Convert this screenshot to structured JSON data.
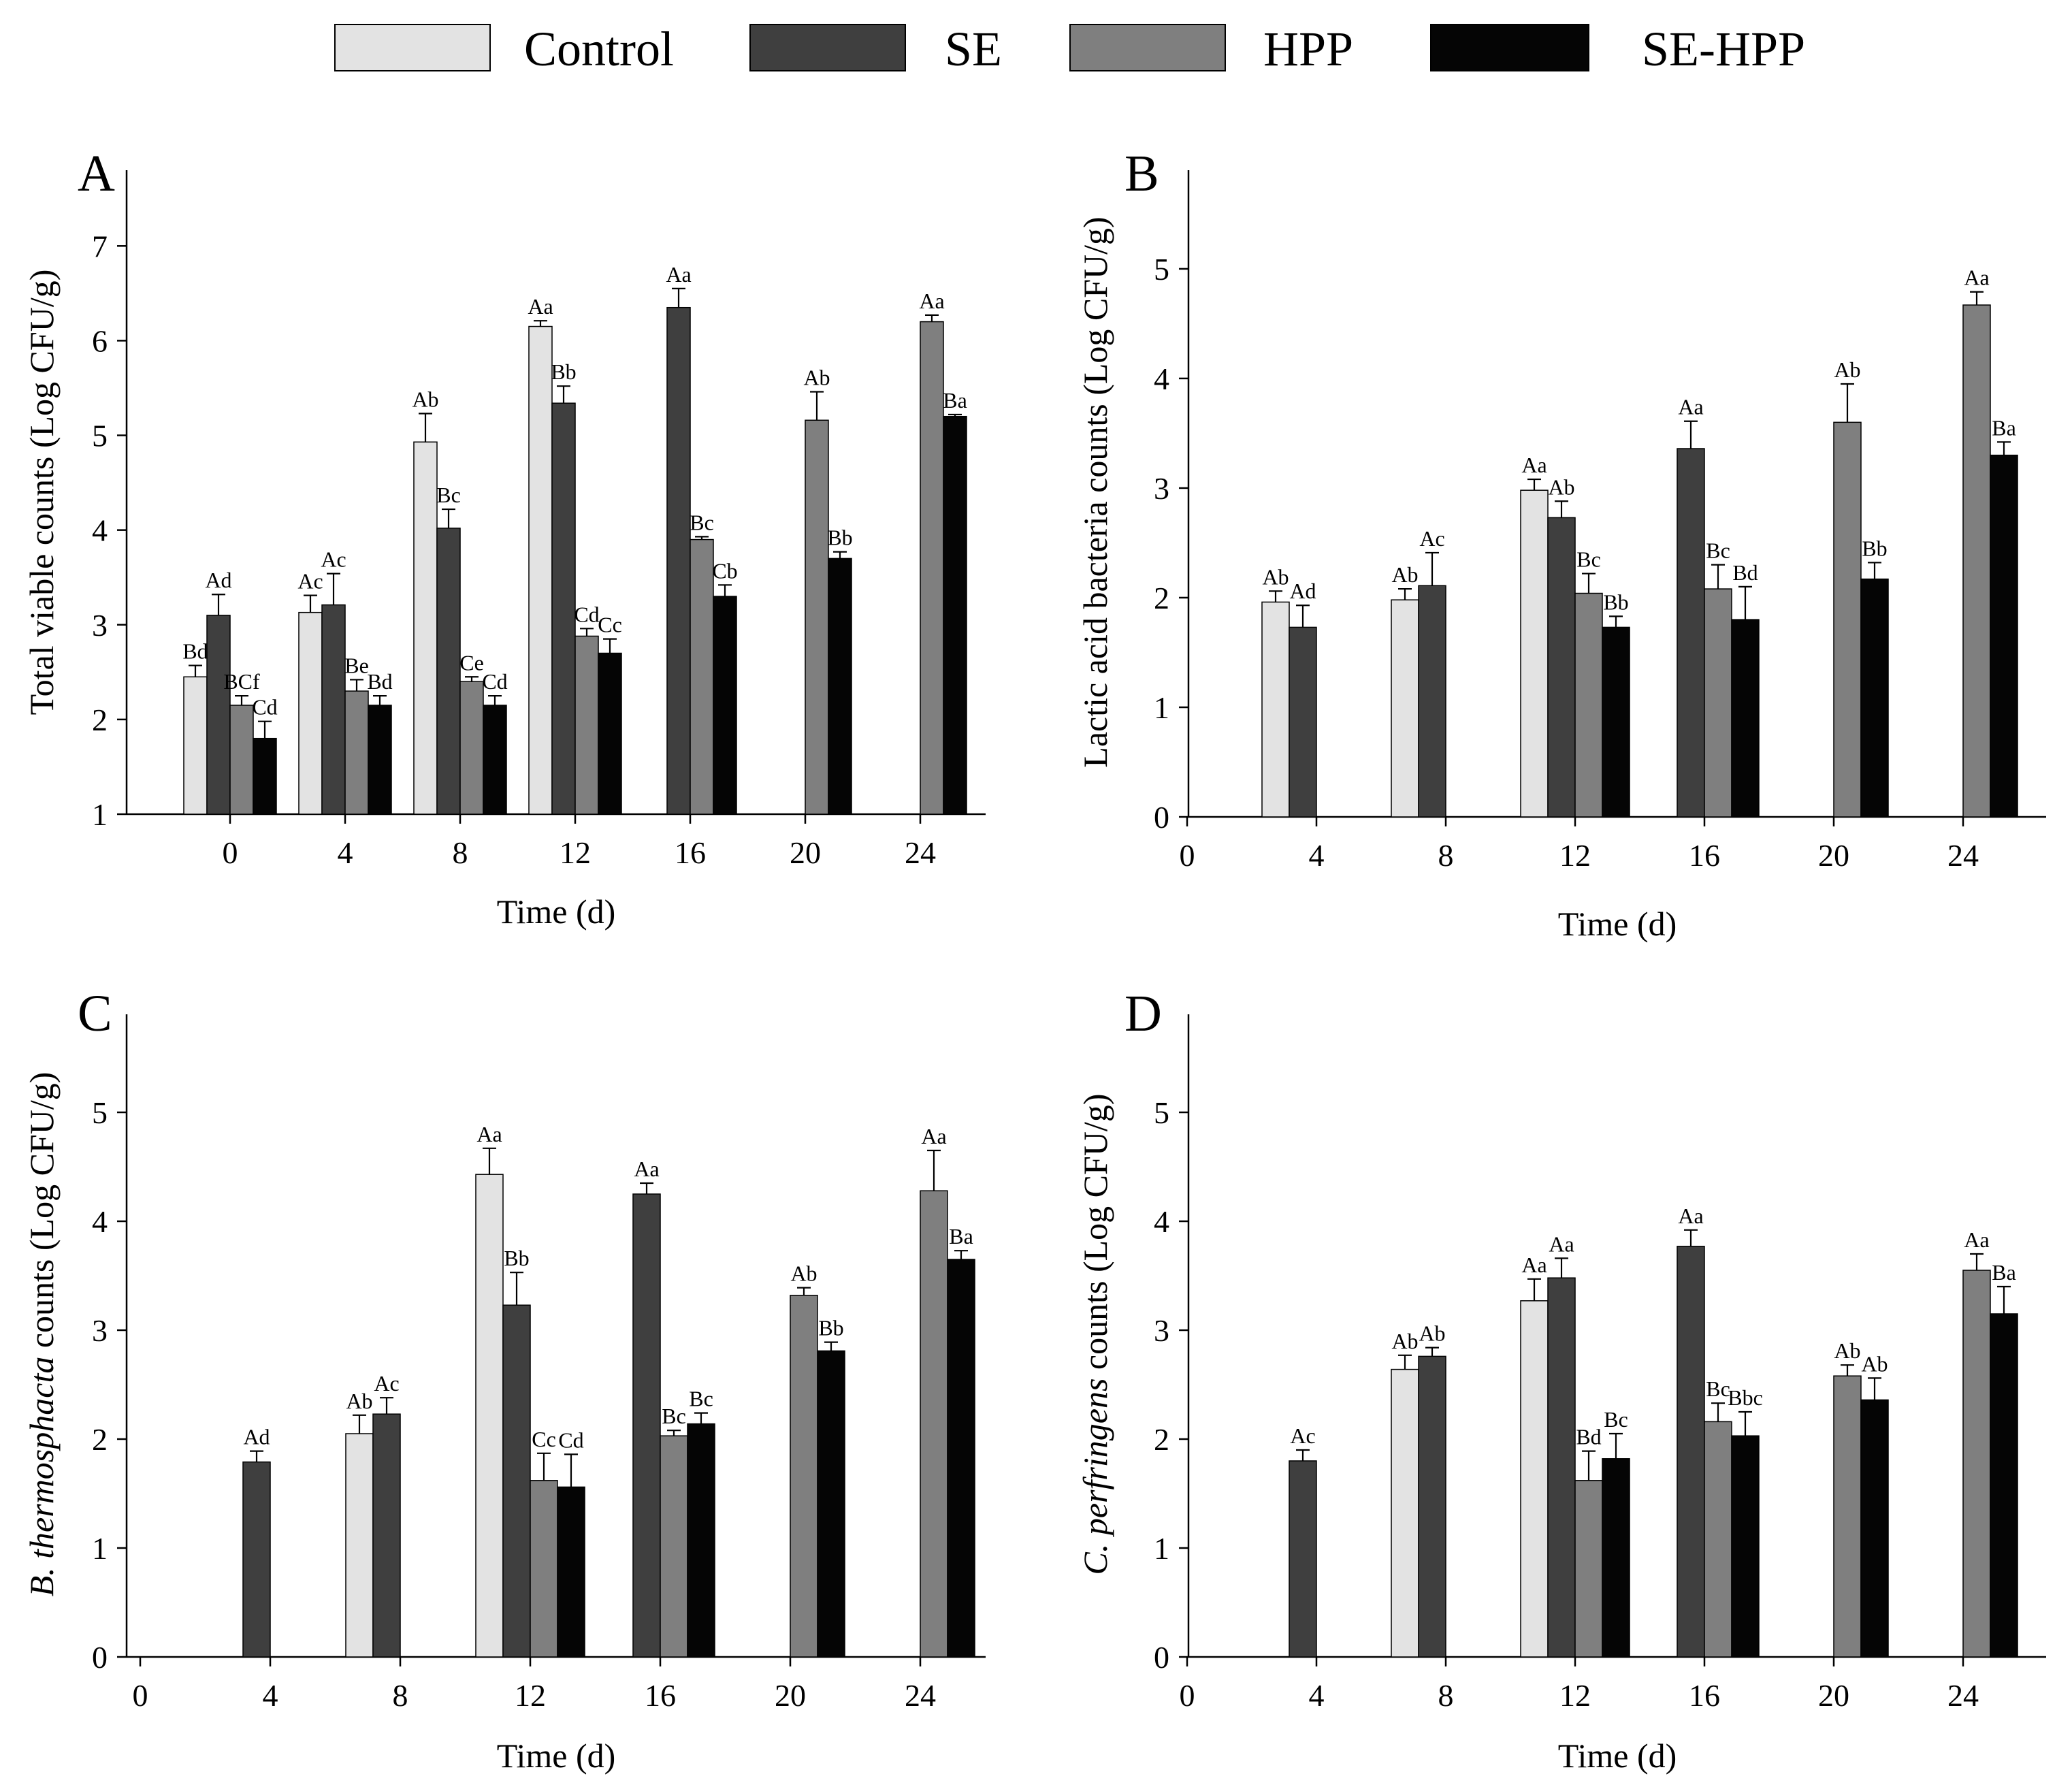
{
  "legend": [
    {
      "name": "Control",
      "color": "#e3e3e3"
    },
    {
      "name": "SE",
      "color": "#3f3f3f"
    },
    {
      "name": "HPP",
      "color": "#7f7f7f"
    },
    {
      "name": "SE-HPP",
      "color": "#050505"
    }
  ],
  "chart_data": [
    {
      "panel": "A",
      "type": "bar",
      "categories": [
        "0",
        "4",
        "8",
        "12",
        "16",
        "20",
        "24"
      ],
      "xlabel": "Time (d)",
      "ylabel": "Total viable counts (Log CFU/g)",
      "ylim": [
        1,
        7.8
      ],
      "yticks": [
        1,
        2,
        3,
        4,
        5,
        6,
        7
      ],
      "grid": false,
      "series": [
        {
          "name": "Control",
          "values": [
            2.45,
            3.13,
            4.93,
            6.15,
            null,
            null,
            null
          ],
          "errors": [
            0.12,
            0.18,
            0.3,
            0.06,
            null,
            null,
            null
          ],
          "labels": [
            "Bd",
            "Ac",
            "Ab",
            "Aa",
            "",
            "",
            ""
          ]
        },
        {
          "name": "SE",
          "values": [
            3.1,
            3.21,
            4.02,
            5.34,
            6.35,
            null,
            null
          ],
          "errors": [
            0.22,
            0.33,
            0.2,
            0.18,
            0.2,
            null,
            null
          ],
          "labels": [
            "Ad",
            "Ac",
            "Bc",
            "Bb",
            "Aa",
            "",
            ""
          ]
        },
        {
          "name": "HPP",
          "values": [
            2.15,
            2.3,
            2.4,
            2.88,
            3.9,
            5.16,
            6.2
          ],
          "errors": [
            0.1,
            0.12,
            0.05,
            0.08,
            0.03,
            0.3,
            0.07
          ],
          "labels": [
            "BCf",
            "Be",
            "Ce",
            "Cd",
            "Bc",
            "Ab",
            "Aa"
          ]
        },
        {
          "name": "SE-HPP",
          "values": [
            1.8,
            2.15,
            2.15,
            2.7,
            3.3,
            3.7,
            5.2
          ],
          "errors": [
            0.18,
            0.1,
            0.1,
            0.15,
            0.12,
            0.07,
            0.02
          ],
          "labels": [
            "Cd",
            "Bd",
            "Cd",
            "Cc",
            "Cb",
            "Bb",
            "Ba"
          ]
        }
      ]
    },
    {
      "panel": "B",
      "type": "bar",
      "categories": [
        "0",
        "4",
        "8",
        "12",
        "16",
        "20",
        "24"
      ],
      "xlabel": "Time (d)",
      "ylabel": "Lactic acid bacteria counts (Log CFU/g)",
      "ylim": [
        0,
        5.9
      ],
      "yticks": [
        0,
        1,
        2,
        3,
        4,
        5
      ],
      "grid": false,
      "series": [
        {
          "name": "Control",
          "values": [
            null,
            1.96,
            1.98,
            2.98,
            null,
            null,
            null
          ],
          "errors": [
            null,
            0.1,
            0.1,
            0.1,
            null,
            null,
            null
          ],
          "labels": [
            "",
            "Ab",
            "Ab",
            "Aa",
            "",
            "",
            ""
          ]
        },
        {
          "name": "SE",
          "values": [
            null,
            1.73,
            2.11,
            2.73,
            3.36,
            null,
            null
          ],
          "errors": [
            null,
            0.2,
            0.3,
            0.15,
            0.25,
            null,
            null
          ],
          "labels": [
            "",
            "Ad",
            "Ac",
            "Ab",
            "Aa",
            "",
            ""
          ]
        },
        {
          "name": "HPP",
          "values": [
            null,
            null,
            null,
            2.04,
            2.08,
            3.6,
            4.67
          ],
          "errors": [
            null,
            null,
            null,
            0.18,
            0.22,
            0.35,
            0.12
          ],
          "labels": [
            "",
            "",
            "",
            "Bc",
            "Bc",
            "Ab",
            "Aa"
          ]
        },
        {
          "name": "SE-HPP",
          "values": [
            null,
            null,
            null,
            1.73,
            1.8,
            2.17,
            3.3
          ],
          "errors": [
            null,
            null,
            null,
            0.1,
            0.3,
            0.15,
            0.12
          ],
          "labels": [
            "",
            "",
            "",
            "Bb",
            "Bd",
            "Bb",
            "Ba"
          ]
        }
      ]
    },
    {
      "panel": "C",
      "type": "bar",
      "categories": [
        "0",
        "4",
        "8",
        "12",
        "16",
        "20",
        "24"
      ],
      "xlabel": "Time (d)",
      "ylabel_italic": "B. thermosphacta",
      "ylabel": " counts (Log CFU/g)",
      "ylim": [
        0,
        5.9
      ],
      "yticks": [
        0,
        1,
        2,
        3,
        4,
        5
      ],
      "grid": false,
      "series": [
        {
          "name": "Control",
          "values": [
            null,
            null,
            2.05,
            4.43,
            null,
            null,
            null
          ],
          "errors": [
            null,
            null,
            0.17,
            0.24,
            null,
            null,
            null
          ],
          "labels": [
            "",
            "",
            "Ab",
            "Aa",
            "",
            "",
            ""
          ]
        },
        {
          "name": "SE",
          "values": [
            null,
            1.79,
            2.23,
            3.23,
            4.25,
            null,
            null
          ],
          "errors": [
            null,
            0.1,
            0.15,
            0.3,
            0.1,
            null,
            null
          ],
          "labels": [
            "",
            "Ad",
            "Ac",
            "Bb",
            "Aa",
            "",
            ""
          ]
        },
        {
          "name": "HPP",
          "values": [
            null,
            null,
            null,
            1.62,
            2.03,
            3.32,
            4.28
          ],
          "errors": [
            null,
            null,
            null,
            0.25,
            0.05,
            0.07,
            0.37
          ],
          "labels": [
            "",
            "",
            "",
            "Cc",
            "Bc",
            "Ab",
            "Aa"
          ]
        },
        {
          "name": "SE-HPP",
          "values": [
            null,
            null,
            null,
            1.56,
            2.14,
            2.81,
            3.65
          ],
          "errors": [
            null,
            null,
            null,
            0.3,
            0.1,
            0.08,
            0.08
          ],
          "labels": [
            "",
            "",
            "",
            "Cd",
            "Bc",
            "Bb",
            "Ba"
          ]
        }
      ]
    },
    {
      "panel": "D",
      "type": "bar",
      "categories": [
        "0",
        "4",
        "8",
        "12",
        "16",
        "20",
        "24"
      ],
      "xlabel": "Time (d)",
      "ylabel_italic": "C. perfringens",
      "ylabel": " counts (Log CFU/g)",
      "ylim": [
        0,
        5.9
      ],
      "yticks": [
        0,
        1,
        2,
        3,
        4,
        5
      ],
      "grid": false,
      "series": [
        {
          "name": "Control",
          "values": [
            null,
            null,
            2.64,
            3.27,
            null,
            null,
            null
          ],
          "errors": [
            null,
            null,
            0.13,
            0.2,
            null,
            null,
            null
          ],
          "labels": [
            "",
            "",
            "Ab",
            "Aa",
            "",
            "",
            ""
          ]
        },
        {
          "name": "SE",
          "values": [
            null,
            1.8,
            2.76,
            3.48,
            3.77,
            null,
            null
          ],
          "errors": [
            null,
            0.1,
            0.08,
            0.18,
            0.15,
            null,
            null
          ],
          "labels": [
            "",
            "Ac",
            "Ab",
            "Aa",
            "Aa",
            "",
            ""
          ]
        },
        {
          "name": "HPP",
          "values": [
            null,
            null,
            null,
            1.62,
            2.16,
            2.58,
            3.55
          ],
          "errors": [
            null,
            null,
            null,
            0.27,
            0.17,
            0.1,
            0.15
          ],
          "labels": [
            "",
            "",
            "",
            "Bd",
            "Bc",
            "Ab",
            "Aa"
          ]
        },
        {
          "name": "SE-HPP",
          "values": [
            null,
            null,
            null,
            1.82,
            2.03,
            2.36,
            3.15
          ],
          "errors": [
            null,
            null,
            null,
            0.23,
            0.22,
            0.2,
            0.25
          ],
          "labels": [
            "",
            "",
            "",
            "Bc",
            "Bbc",
            "Ab",
            "Ba"
          ]
        }
      ]
    }
  ]
}
